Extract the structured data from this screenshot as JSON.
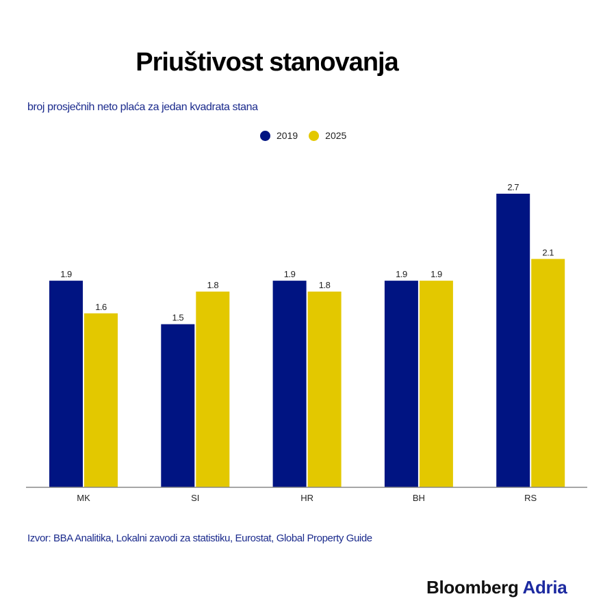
{
  "chart_data": {
    "type": "bar",
    "title": "Priuštivost stanovanja",
    "subtitle": "broj prosječnih neto plaća za jedan kvadrata stana",
    "categories": [
      "MK",
      "SI",
      "HR",
      "BH",
      "RS"
    ],
    "series": [
      {
        "name": "2019",
        "color": "#001482",
        "values": [
          1.9,
          1.5,
          1.9,
          1.9,
          2.7
        ]
      },
      {
        "name": "2025",
        "color": "#e3c800",
        "values": [
          1.6,
          1.8,
          1.8,
          1.9,
          2.1
        ]
      }
    ],
    "xlabel": "",
    "ylabel": "",
    "ylim": [
      0,
      2.7
    ],
    "grid": false,
    "legend_position": "top-center",
    "source": "Izvor: BBA Analitika, Lokalni zavodi za statistiku, Eurostat, Global Property Guide"
  },
  "branding": {
    "part1": "Bloomberg",
    "part2": "Adria"
  }
}
